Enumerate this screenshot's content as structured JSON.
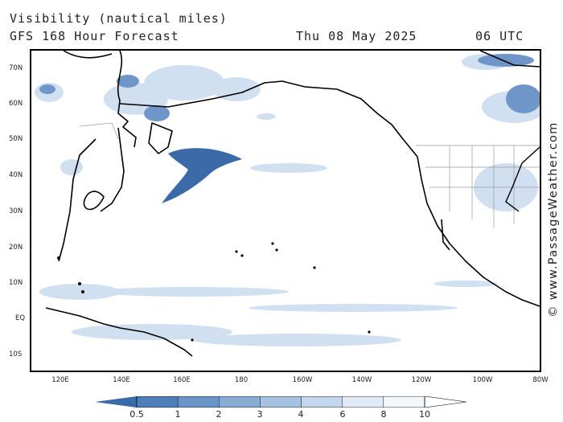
{
  "header": {
    "line1": "Visibility (nautical miles)",
    "line2": "GFS 168 Hour Forecast",
    "date": "Thu 08 May 2025",
    "time": "06 UTC"
  },
  "credit": "© www.PassageWeather.com",
  "axes": {
    "latitude_labels": [
      "70N",
      "60N",
      "50N",
      "40N",
      "30N",
      "20N",
      "10N",
      "EQ",
      "10S"
    ],
    "longitude_labels": [
      "120E",
      "140E",
      "160E",
      "180",
      "160W",
      "140W",
      "120W",
      "100W",
      "80W"
    ]
  },
  "legend": {
    "labels": [
      "0.5",
      "1",
      "2",
      "3",
      "4",
      "6",
      "8",
      "10"
    ],
    "colors": [
      "#3a6aa8",
      "#4f7fbb",
      "#6a95c8",
      "#87acd6",
      "#a5c2e2",
      "#c4d7ee",
      "#e0ebf7",
      "#f4f8fd",
      "#ffffff"
    ]
  },
  "colors": {
    "border": "#000000",
    "coast": "#000000",
    "fog_dense": "#3a6aa8",
    "fog_light": "#c9dbef"
  }
}
